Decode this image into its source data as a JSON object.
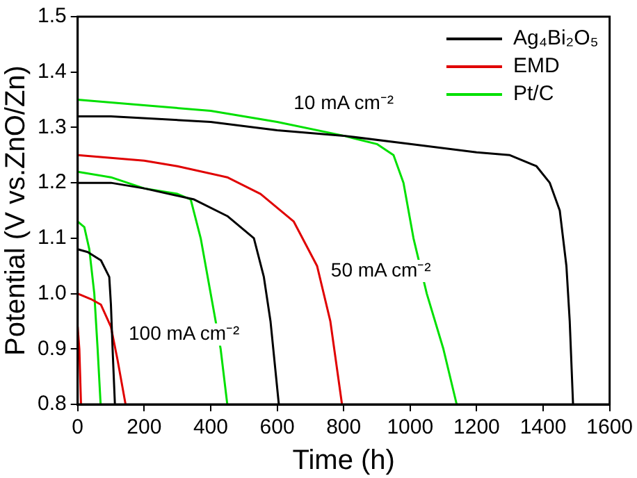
{
  "chart_data": {
    "type": "line",
    "xlabel": "Time (h)",
    "ylabel": "Potential (V vs.ZnO/Zn)",
    "xlim": [
      0,
      1600
    ],
    "xticks": [
      0,
      200,
      400,
      600,
      800,
      1000,
      1200,
      1400,
      1600
    ],
    "ylim": [
      0.8,
      1.5
    ],
    "yticks": [
      {
        "value": 0.8,
        "label": "0.8"
      },
      {
        "value": 0.9,
        "label": "0.9"
      },
      {
        "value": 1,
        "label": "1.0"
      },
      {
        "value": 1.1,
        "label": "1.1"
      },
      {
        "value": 1.2,
        "label": "1.2"
      },
      {
        "value": 1.3,
        "label": "1.3"
      },
      {
        "value": 1.4,
        "label": "1.4"
      },
      {
        "value": 1.5,
        "label": "1.5"
      }
    ],
    "grid": false,
    "legend": "top right",
    "marker": "none",
    "line_style": "solid",
    "annotations": [
      "10 mA cm⁻²",
      "50 mA cm⁻²",
      "100 mA cm⁻²"
    ],
    "series": [
      {
        "name": "Ag₄Bi₂O₅",
        "color": "#000000",
        "x": [
          0,
          100,
          400,
          600,
          800,
          1000,
          1200,
          1300,
          1380,
          1420,
          1450,
          1470,
          1480,
          1490
        ],
        "values": [
          1.32,
          1.32,
          1.31,
          1.295,
          1.285,
          1.27,
          1.255,
          1.25,
          1.23,
          1.2,
          1.15,
          1.05,
          0.95,
          0.8
        ]
      },
      {
        "name": "EMD",
        "color": "#e00000",
        "x": [
          0,
          200,
          300,
          450,
          550,
          650,
          720,
          760,
          795
        ],
        "values": [
          1.25,
          1.24,
          1.23,
          1.21,
          1.18,
          1.13,
          1.05,
          0.95,
          0.8
        ]
      },
      {
        "name": "Pt/C",
        "color": "#00e000",
        "x": [
          0,
          200,
          400,
          600,
          800,
          900,
          950,
          980,
          1010,
          1050,
          1100,
          1140
        ],
        "values": [
          1.35,
          1.34,
          1.33,
          1.31,
          1.285,
          1.27,
          1.25,
          1.2,
          1.1,
          1,
          0.9,
          0.8
        ]
      },
      {
        "color": "#000000",
        "x": [
          0,
          100,
          200,
          350,
          450,
          500,
          530,
          560,
          580,
          605
        ],
        "values": [
          1.2,
          1.2,
          1.19,
          1.17,
          1.14,
          1.115,
          1.1,
          1.03,
          0.95,
          0.8
        ]
      },
      {
        "color": "#00e000",
        "x": [
          0,
          100,
          200,
          300,
          340,
          370,
          400,
          430,
          450
        ],
        "values": [
          1.22,
          1.21,
          1.19,
          1.18,
          1.17,
          1.1,
          1,
          0.9,
          0.8
        ]
      },
      {
        "color": "#000000",
        "x": [
          0,
          30,
          70,
          95,
          100,
          105,
          112
        ],
        "values": [
          1.08,
          1.075,
          1.06,
          1.03,
          0.98,
          0.9,
          0.8
        ]
      },
      {
        "color": "#e00000",
        "x": [
          0,
          40,
          70,
          100,
          120,
          144
        ],
        "values": [
          1,
          0.99,
          0.98,
          0.94,
          0.88,
          0.8
        ]
      },
      {
        "color": "#e00000",
        "x": [
          0,
          5,
          10
        ],
        "values": [
          0.94,
          0.9,
          0.8
        ]
      },
      {
        "color": "#00e000",
        "x": [
          0,
          20,
          35,
          50,
          60,
          69
        ],
        "values": [
          1.13,
          1.12,
          1.08,
          1,
          0.9,
          0.8
        ]
      }
    ]
  }
}
